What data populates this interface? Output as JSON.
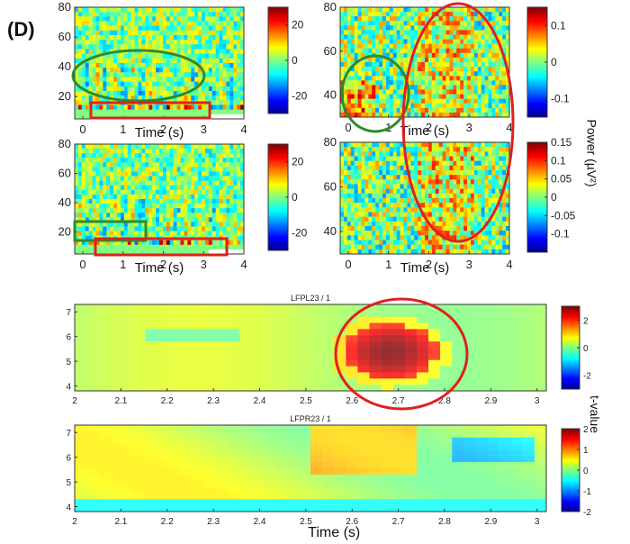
{
  "panel_label": "(D)",
  "power_label": "Power (µV²)",
  "tvalue_label": "t-value",
  "time_label": "Time (s)",
  "colors": {
    "jet": [
      "#00008f",
      "#0000ff",
      "#00ffff",
      "#ffff00",
      "#ff0000",
      "#800000"
    ],
    "green_annotation": "#2e8b2e",
    "red_annotation": "#e02020"
  },
  "chart_data": [
    {
      "type": "heatmap",
      "id": "spectrogram-top-left",
      "xlabel": "Time (s)",
      "ylabel": "",
      "xlim": [
        -0.2,
        4
      ],
      "ylim": [
        5,
        80
      ],
      "xticks": [
        "0",
        "1",
        "2",
        "3",
        "4"
      ],
      "yticks": [
        "20",
        "40",
        "60",
        "80"
      ],
      "colorbar": {
        "ticks": [
          "20",
          "0",
          "-20"
        ],
        "range": [
          -30,
          30
        ]
      }
    },
    {
      "type": "heatmap",
      "id": "spectrogram-top-right",
      "xlabel": "Time (s)",
      "ylabel": "",
      "xlim": [
        -0.2,
        4
      ],
      "ylim": [
        30,
        80
      ],
      "xticks": [
        "0",
        "1",
        "2",
        "3",
        "4"
      ],
      "yticks": [
        "40",
        "60",
        "80"
      ],
      "colorbar": {
        "ticks": [
          "0.1",
          "0",
          "-0.1"
        ],
        "range": [
          -0.15,
          0.15
        ]
      }
    },
    {
      "type": "heatmap",
      "id": "spectrogram-mid-left",
      "xlabel": "Time (s)",
      "ylabel": "",
      "xlim": [
        -0.2,
        4
      ],
      "ylim": [
        5,
        80
      ],
      "xticks": [
        "0",
        "1",
        "2",
        "3",
        "4"
      ],
      "yticks": [
        "20",
        "40",
        "60",
        "80"
      ],
      "colorbar": {
        "ticks": [
          "20",
          "0",
          "-20"
        ],
        "range": [
          -30,
          30
        ]
      }
    },
    {
      "type": "heatmap",
      "id": "spectrogram-mid-right",
      "xlabel": "Time (s)",
      "ylabel": "",
      "xlim": [
        -0.2,
        4
      ],
      "ylim": [
        30,
        80
      ],
      "xticks": [
        "0",
        "1",
        "2",
        "3",
        "4"
      ],
      "yticks": [
        "40",
        "60",
        "80"
      ],
      "colorbar": {
        "ticks": [
          "0.15",
          "0.1",
          "0.05",
          "0",
          "-0.05",
          "-0.1"
        ],
        "range": [
          -0.15,
          0.15
        ]
      }
    },
    {
      "type": "heatmap",
      "id": "tvalue-lfpl23",
      "title": "LFPL23 / 1",
      "xlabel": "",
      "ylabel": "",
      "xlim": [
        2,
        3.02
      ],
      "ylim": [
        3.8,
        7.3
      ],
      "xticks": [
        "2",
        "2.1",
        "2.2",
        "2.3",
        "2.4",
        "2.5",
        "2.6",
        "2.7",
        "2.8",
        "2.9",
        "3"
      ],
      "yticks": [
        "4",
        "5",
        "6",
        "7"
      ],
      "colorbar": {
        "ticks": [
          "2",
          "0",
          "-2"
        ],
        "range": [
          -3,
          3
        ]
      },
      "cluster": {
        "x_range": [
          2.6,
          2.82
        ],
        "y_range": [
          4,
          6.5
        ],
        "peak_t": 3
      }
    },
    {
      "type": "heatmap",
      "id": "tvalue-lfpr23",
      "title": "LFPR23 / 1",
      "xlabel": "Time (s)",
      "ylabel": "",
      "xlim": [
        2,
        3.02
      ],
      "ylim": [
        3.8,
        7.3
      ],
      "xticks": [
        "2",
        "2.1",
        "2.2",
        "2.3",
        "2.4",
        "2.5",
        "2.6",
        "2.7",
        "2.8",
        "2.9",
        "3"
      ],
      "yticks": [
        "4",
        "5",
        "6",
        "7"
      ],
      "colorbar": {
        "ticks": [
          "2",
          "1",
          "0",
          "-1",
          "-2"
        ],
        "range": [
          -2,
          2
        ]
      }
    }
  ]
}
